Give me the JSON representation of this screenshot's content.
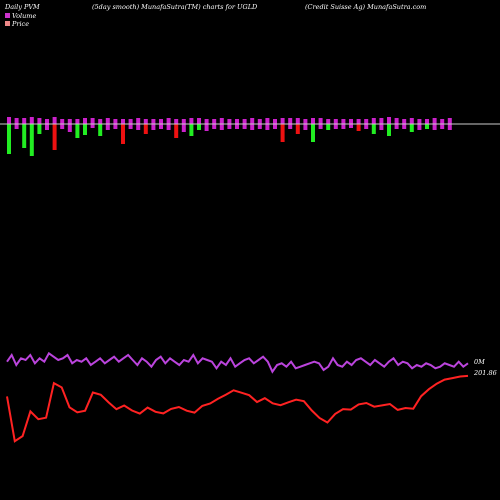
{
  "header": {
    "left": "Daily PVM",
    "center": "(5day smooth) MunafaSutra(TM) charts for UGLD",
    "right": "(Credit Suisse   Ag) MunafaSutra.com"
  },
  "legend": {
    "volume_label": "Volume",
    "price_label": "Price"
  },
  "colors": {
    "background": "#000000",
    "baseline": "#cccccc",
    "bar_magenta": "#cc22cc",
    "bar_green": "#22ee22",
    "bar_red": "#ee1111",
    "volume_line": "#bb44dd",
    "price_line": "#ff2222",
    "legend_volume_swatch": "#cc33cc",
    "legend_price_swatch": "#ee8888"
  },
  "end_labels": {
    "volume": "0M",
    "price": "201.86"
  },
  "chart_data": {
    "type": "bar",
    "title": "",
    "xlabel": "",
    "ylabel": "",
    "bars": [
      {
        "up": 7,
        "down": 30,
        "down_color": "green"
      },
      {
        "up": 6,
        "down": 5,
        "down_color": "magenta"
      },
      {
        "up": 6,
        "down": 24,
        "down_color": "green"
      },
      {
        "up": 7,
        "down": 32,
        "down_color": "green"
      },
      {
        "up": 6,
        "down": 10,
        "down_color": "green"
      },
      {
        "up": 5,
        "down": 6,
        "down_color": "magenta"
      },
      {
        "up": 7,
        "down": 26,
        "down_color": "red"
      },
      {
        "up": 5,
        "down": 5,
        "down_color": "magenta"
      },
      {
        "up": 5,
        "down": 8,
        "down_color": "magenta"
      },
      {
        "up": 5,
        "down": 14,
        "down_color": "green"
      },
      {
        "up": 6,
        "down": 11,
        "down_color": "green"
      },
      {
        "up": 6,
        "down": 4,
        "down_color": "magenta"
      },
      {
        "up": 5,
        "down": 12,
        "down_color": "green"
      },
      {
        "up": 6,
        "down": 6,
        "down_color": "magenta"
      },
      {
        "up": 5,
        "down": 5,
        "down_color": "magenta"
      },
      {
        "up": 5,
        "down": 20,
        "down_color": "red"
      },
      {
        "up": 5,
        "down": 5,
        "down_color": "magenta"
      },
      {
        "up": 6,
        "down": 6,
        "down_color": "magenta"
      },
      {
        "up": 5,
        "down": 10,
        "down_color": "red"
      },
      {
        "up": 5,
        "down": 6,
        "down_color": "magenta"
      },
      {
        "up": 5,
        "down": 5,
        "down_color": "magenta"
      },
      {
        "up": 6,
        "down": 6,
        "down_color": "magenta"
      },
      {
        "up": 5,
        "down": 14,
        "down_color": "red"
      },
      {
        "up": 5,
        "down": 8,
        "down_color": "magenta"
      },
      {
        "up": 6,
        "down": 12,
        "down_color": "green"
      },
      {
        "up": 6,
        "down": 6,
        "down_color": "green"
      },
      {
        "up": 5,
        "down": 7,
        "down_color": "magenta"
      },
      {
        "up": 5,
        "down": 5,
        "down_color": "magenta"
      },
      {
        "up": 6,
        "down": 6,
        "down_color": "magenta"
      },
      {
        "up": 5,
        "down": 5,
        "down_color": "magenta"
      },
      {
        "up": 5,
        "down": 5,
        "down_color": "magenta"
      },
      {
        "up": 5,
        "down": 5,
        "down_color": "magenta"
      },
      {
        "up": 6,
        "down": 6,
        "down_color": "magenta"
      },
      {
        "up": 5,
        "down": 5,
        "down_color": "magenta"
      },
      {
        "up": 6,
        "down": 6,
        "down_color": "magenta"
      },
      {
        "up": 5,
        "down": 5,
        "down_color": "magenta"
      },
      {
        "up": 6,
        "down": 18,
        "down_color": "red"
      },
      {
        "up": 6,
        "down": 5,
        "down_color": "magenta"
      },
      {
        "up": 6,
        "down": 10,
        "down_color": "red"
      },
      {
        "up": 5,
        "down": 6,
        "down_color": "magenta"
      },
      {
        "up": 6,
        "down": 18,
        "down_color": "green"
      },
      {
        "up": 6,
        "down": 5,
        "down_color": "magenta"
      },
      {
        "up": 5,
        "down": 6,
        "down_color": "green"
      },
      {
        "up": 5,
        "down": 5,
        "down_color": "magenta"
      },
      {
        "up": 5,
        "down": 5,
        "down_color": "magenta"
      },
      {
        "up": 5,
        "down": 4,
        "down_color": "magenta"
      },
      {
        "up": 5,
        "down": 7,
        "down_color": "red"
      },
      {
        "up": 5,
        "down": 5,
        "down_color": "magenta"
      },
      {
        "up": 6,
        "down": 10,
        "down_color": "green"
      },
      {
        "up": 6,
        "down": 6,
        "down_color": "magenta"
      },
      {
        "up": 7,
        "down": 12,
        "down_color": "green"
      },
      {
        "up": 6,
        "down": 5,
        "down_color": "magenta"
      },
      {
        "up": 5,
        "down": 5,
        "down_color": "magenta"
      },
      {
        "up": 6,
        "down": 8,
        "down_color": "green"
      },
      {
        "up": 5,
        "down": 6,
        "down_color": "magenta"
      },
      {
        "up": 5,
        "down": 5,
        "down_color": "green"
      },
      {
        "up": 6,
        "down": 6,
        "down_color": "magenta"
      },
      {
        "up": 5,
        "down": 5,
        "down_color": "magenta"
      },
      {
        "up": 6,
        "down": 6,
        "down_color": "magenta"
      }
    ],
    "volume_line": [
      58,
      62,
      56,
      60,
      59,
      62,
      57,
      60,
      58,
      63,
      61,
      59,
      60,
      62,
      57,
      59,
      58,
      60,
      56,
      58,
      60,
      57,
      59,
      61,
      58,
      60,
      62,
      59,
      56,
      60,
      58,
      55,
      59,
      61,
      57,
      60,
      58,
      56,
      59,
      58,
      62,
      57,
      60,
      59,
      58,
      54,
      58,
      56,
      60,
      55,
      57,
      59,
      60,
      57,
      59,
      61,
      58,
      52,
      56,
      57,
      55,
      58,
      54,
      55,
      56,
      57,
      58,
      57,
      53,
      55,
      60,
      56,
      55,
      58,
      56,
      59,
      60,
      58,
      56,
      59,
      57,
      55,
      58,
      60,
      56,
      58,
      57,
      54,
      56,
      55,
      57,
      56,
      54,
      55,
      57,
      56,
      55,
      58,
      55,
      57
    ],
    "price_line": [
      182.5,
      140.2,
      145.0,
      168.3,
      161.0,
      162.4,
      195.1,
      191.0,
      172.2,
      167.5,
      169.0,
      186.2,
      184.0,
      176.8,
      170.4,
      173.9,
      169.2,
      166.3,
      171.9,
      168.0,
      166.5,
      170.7,
      172.5,
      169.0,
      167.2,
      173.5,
      175.8,
      180.2,
      184.1,
      188.3,
      186.0,
      183.6,
      177.2,
      180.8,
      176.0,
      174.2,
      176.9,
      179.4,
      178.0,
      169.3,
      162.1,
      157.9,
      166.0,
      170.5,
      170.0,
      175.0,
      176.3,
      172.8,
      174.0,
      175.3,
      169.8,
      171.6,
      170.9,
      182.7,
      189.3,
      194.5,
      198.4,
      199.8,
      201.3,
      201.86
    ],
    "ylim": [
      130,
      215
    ]
  }
}
